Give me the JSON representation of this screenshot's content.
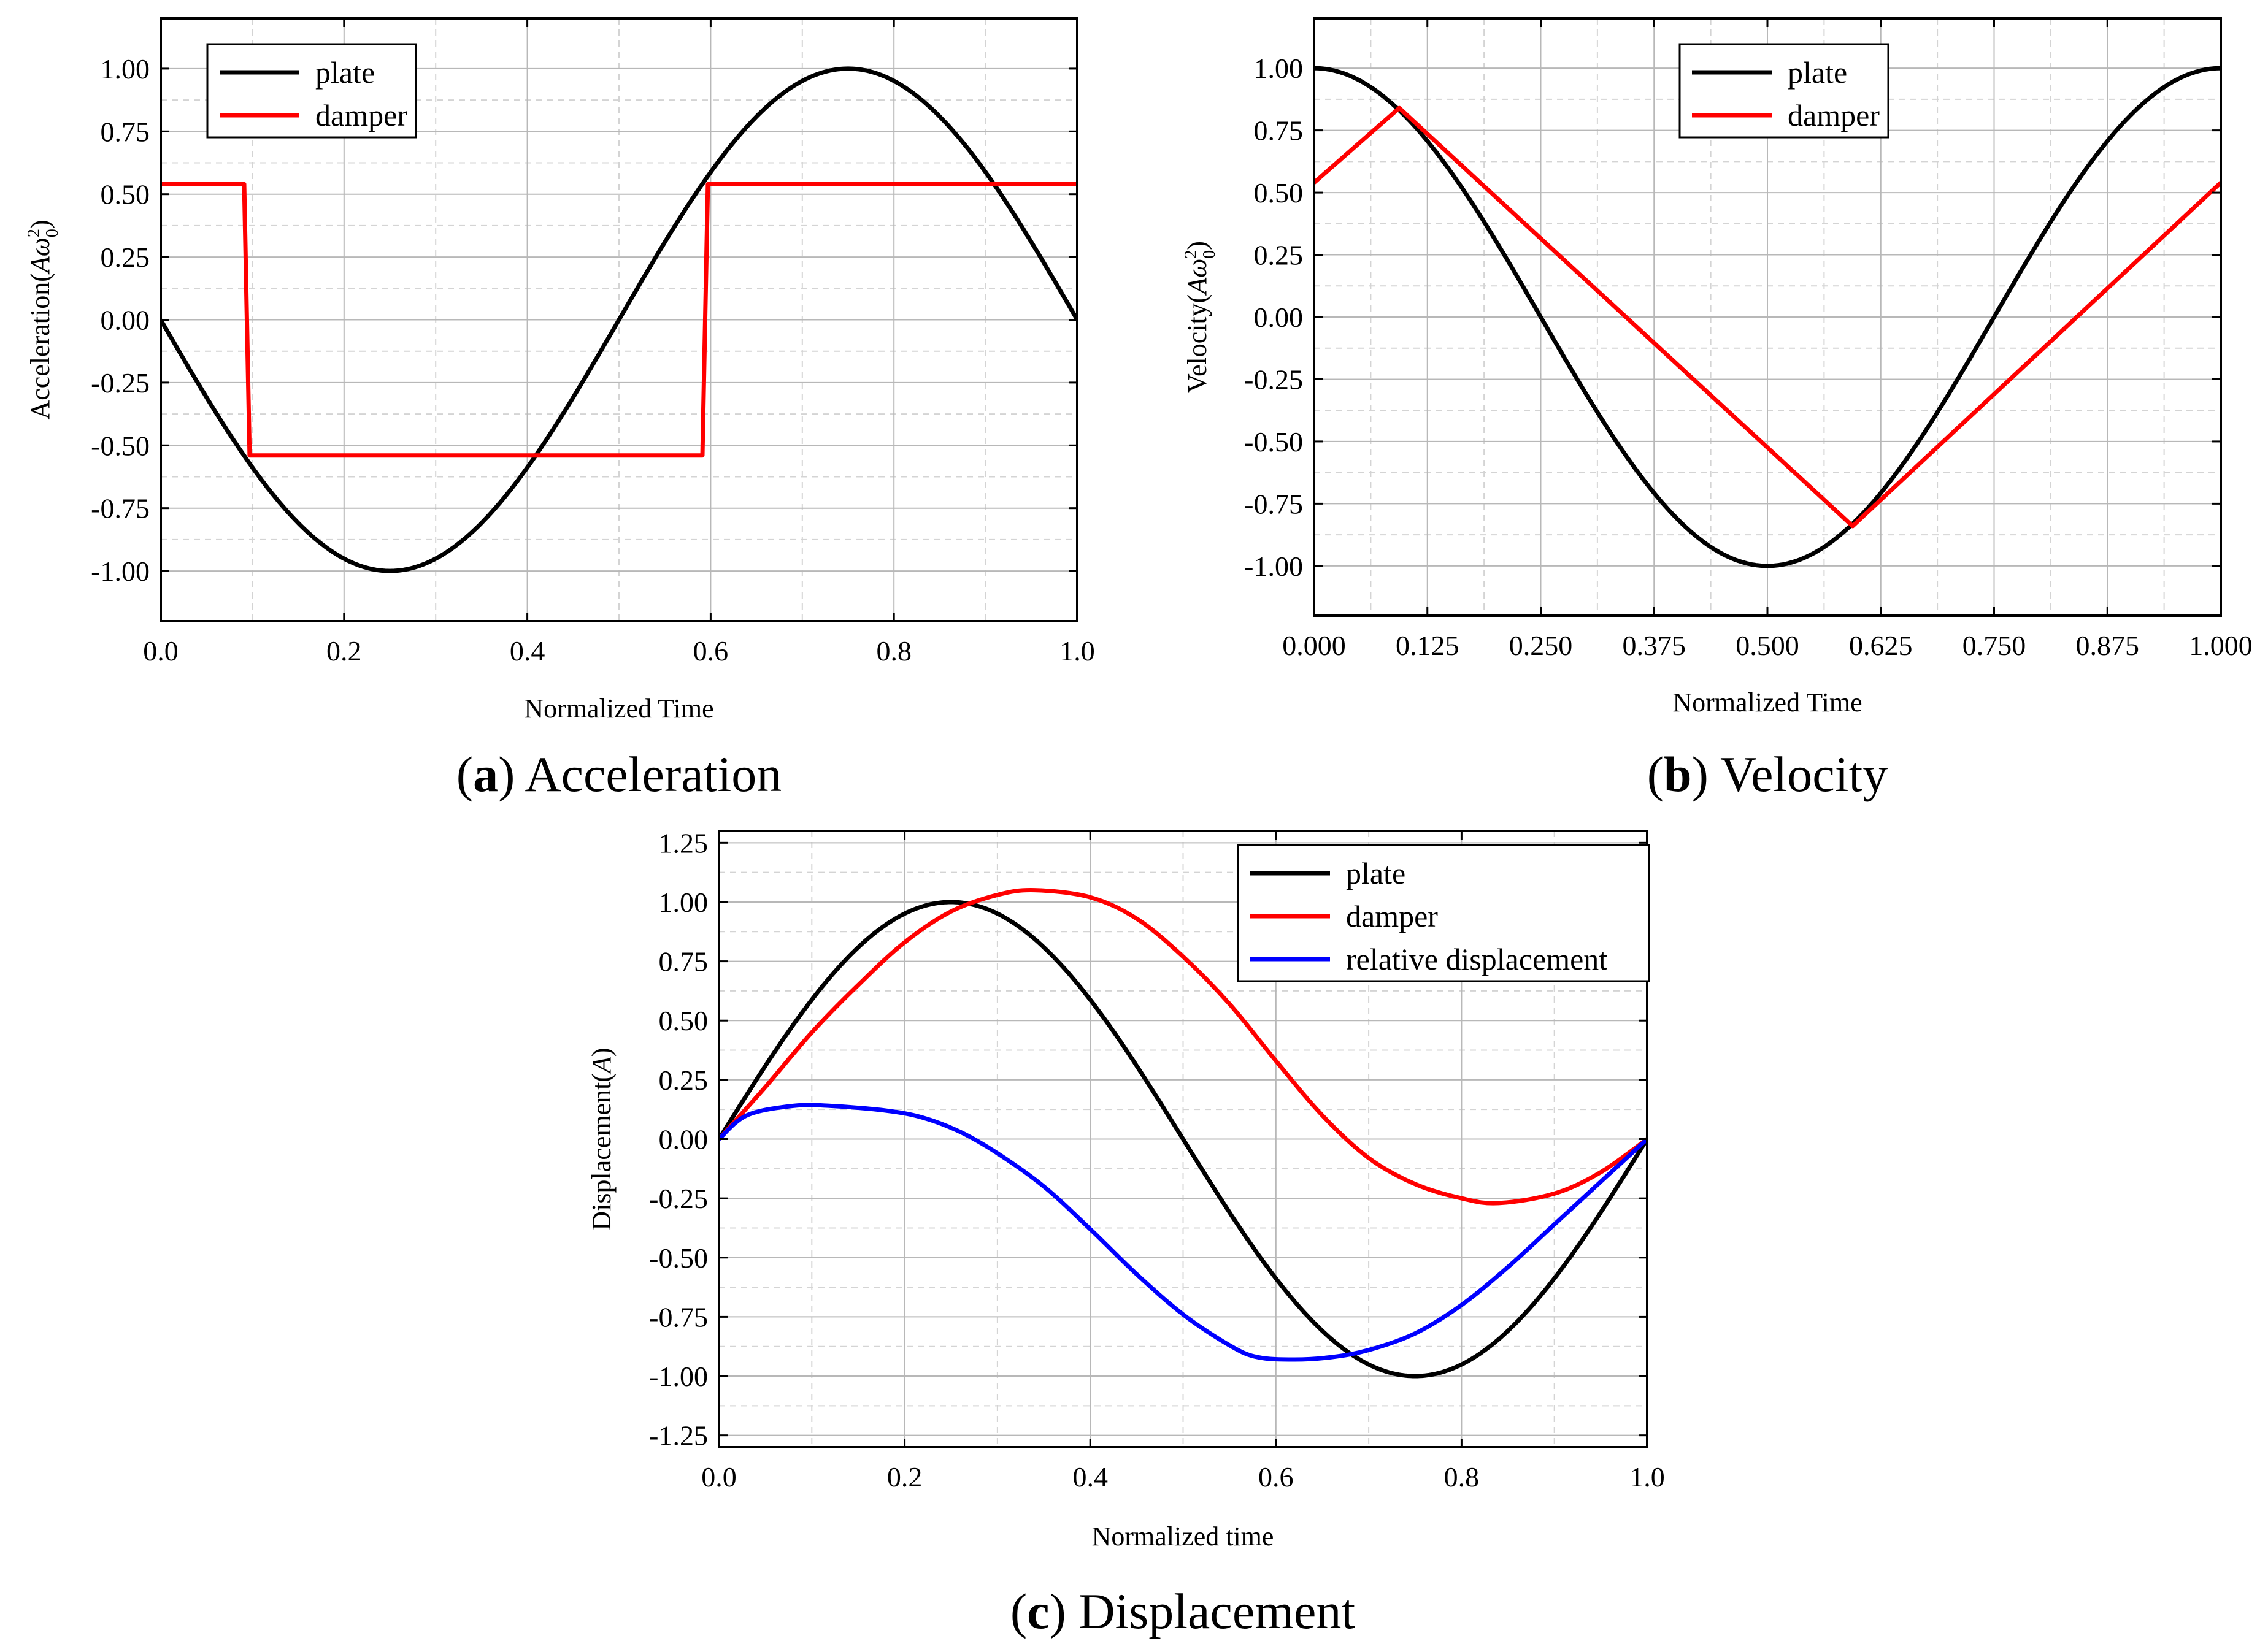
{
  "chart_data": [
    {
      "id": "a",
      "type": "line",
      "caption_letter": "a",
      "caption_text": "Acceleration",
      "xlabel": "Normalized Time",
      "ylabel_prefix": "Acceleration(",
      "ylabel_var": "Aω",
      "ylabel_sup": "2",
      "ylabel_sub": "0",
      "ylabel_suffix": ")",
      "xlim": [
        0,
        1
      ],
      "ylim": [
        -1.2,
        1.2
      ],
      "xticks": [
        0.0,
        0.2,
        0.4,
        0.6,
        0.8,
        1.0
      ],
      "xtick_labels": [
        "0.0",
        "0.2",
        "0.4",
        "0.6",
        "0.8",
        "1.0"
      ],
      "yticks": [
        -1.0,
        -0.75,
        -0.5,
        -0.25,
        0.0,
        0.25,
        0.5,
        0.75,
        1.0
      ],
      "ytick_labels": [
        "-1.00",
        "-0.75",
        "-0.50",
        "-0.25",
        "0.00",
        "0.25",
        "0.50",
        "0.75",
        "1.00"
      ],
      "legend_position": "top-left",
      "series": [
        {
          "name": "plate",
          "color": "#000000",
          "func": "-sin",
          "description": "-sin(2πt)"
        },
        {
          "name": "damper",
          "color": "#ff0000",
          "points": [
            [
              0,
              0.54
            ],
            [
              0.091,
              0.54
            ],
            [
              0.097,
              -0.54
            ],
            [
              0.591,
              -0.54
            ],
            [
              0.597,
              0.54
            ],
            [
              1.0,
              0.54
            ]
          ]
        }
      ]
    },
    {
      "id": "b",
      "type": "line",
      "caption_letter": "b",
      "caption_text": "Velocity",
      "xlabel": "Normalized Time",
      "ylabel_prefix": "Velocity(",
      "ylabel_var": "Aω",
      "ylabel_sup": "2",
      "ylabel_sub": "0",
      "ylabel_suffix": ")",
      "xlim": [
        0,
        1
      ],
      "ylim": [
        -1.2,
        1.2
      ],
      "xticks": [
        0.0,
        0.125,
        0.25,
        0.375,
        0.5,
        0.625,
        0.75,
        0.875,
        1.0
      ],
      "xtick_labels": [
        "0.000",
        "0.125",
        "0.250",
        "0.375",
        "0.500",
        "0.625",
        "0.750",
        "0.875",
        "1.000"
      ],
      "yticks": [
        -1.0,
        -0.75,
        -0.5,
        -0.25,
        0.0,
        0.25,
        0.5,
        0.75,
        1.0
      ],
      "ytick_labels": [
        "-1.00",
        "-0.75",
        "-0.50",
        "-0.25",
        "0.00",
        "0.25",
        "0.50",
        "0.75",
        "1.00"
      ],
      "legend_position": "top-right",
      "series": [
        {
          "name": "plate",
          "color": "#000000",
          "func": "cos",
          "description": "cos(2πt)"
        },
        {
          "name": "damper",
          "color": "#ff0000",
          "points": [
            [
              0,
              0.54
            ],
            [
              0.094,
              0.84
            ],
            [
              0.594,
              -0.84
            ],
            [
              1.0,
              0.54
            ]
          ]
        }
      ]
    },
    {
      "id": "c",
      "type": "line",
      "caption_letter": "c",
      "caption_text": "Displacement",
      "xlabel": "Normalized time",
      "ylabel_prefix": "Displacement(",
      "ylabel_var": "A",
      "ylabel_sup": "",
      "ylabel_sub": "",
      "ylabel_suffix": ")",
      "xlim": [
        0,
        1
      ],
      "ylim": [
        -1.3,
        1.3
      ],
      "xticks": [
        0.0,
        0.2,
        0.4,
        0.6,
        0.8,
        1.0
      ],
      "xtick_labels": [
        "0.0",
        "0.2",
        "0.4",
        "0.6",
        "0.8",
        "1.0"
      ],
      "yticks": [
        -1.25,
        -1.0,
        -0.75,
        -0.5,
        -0.25,
        0.0,
        0.25,
        0.5,
        0.75,
        1.0,
        1.25
      ],
      "ytick_labels": [
        "-1.25",
        "-1.00",
        "-0.75",
        "-0.50",
        "-0.25",
        "0.00",
        "0.25",
        "0.50",
        "0.75",
        "1.00",
        "1.25"
      ],
      "legend_position": "top-right",
      "series": [
        {
          "name": "plate",
          "color": "#000000",
          "func": "sin",
          "description": "sin(2πt)"
        },
        {
          "name": "damper",
          "color": "#ff0000",
          "points": [
            [
              0,
              0
            ],
            [
              0.05,
              0.22
            ],
            [
              0.1,
              0.45
            ],
            [
              0.15,
              0.65
            ],
            [
              0.2,
              0.83
            ],
            [
              0.25,
              0.96
            ],
            [
              0.3,
              1.03
            ],
            [
              0.34,
              1.05
            ],
            [
              0.4,
              1.02
            ],
            [
              0.45,
              0.93
            ],
            [
              0.5,
              0.77
            ],
            [
              0.55,
              0.57
            ],
            [
              0.6,
              0.33
            ],
            [
              0.65,
              0.1
            ],
            [
              0.7,
              -0.08
            ],
            [
              0.75,
              -0.19
            ],
            [
              0.8,
              -0.25
            ],
            [
              0.84,
              -0.27
            ],
            [
              0.9,
              -0.23
            ],
            [
              0.95,
              -0.14
            ],
            [
              1.0,
              0
            ]
          ]
        },
        {
          "name": "relative displacement",
          "color": "#0000ff",
          "points": [
            [
              0,
              0
            ],
            [
              0.03,
              0.1
            ],
            [
              0.08,
              0.14
            ],
            [
              0.12,
              0.14
            ],
            [
              0.18,
              0.12
            ],
            [
              0.22,
              0.09
            ],
            [
              0.26,
              0.03
            ],
            [
              0.3,
              -0.06
            ],
            [
              0.35,
              -0.2
            ],
            [
              0.4,
              -0.38
            ],
            [
              0.45,
              -0.57
            ],
            [
              0.5,
              -0.74
            ],
            [
              0.55,
              -0.87
            ],
            [
              0.58,
              -0.92
            ],
            [
              0.62,
              -0.93
            ],
            [
              0.66,
              -0.92
            ],
            [
              0.7,
              -0.89
            ],
            [
              0.75,
              -0.82
            ],
            [
              0.8,
              -0.7
            ],
            [
              0.85,
              -0.54
            ],
            [
              0.9,
              -0.36
            ],
            [
              0.95,
              -0.18
            ],
            [
              1.0,
              0
            ]
          ]
        }
      ]
    }
  ]
}
